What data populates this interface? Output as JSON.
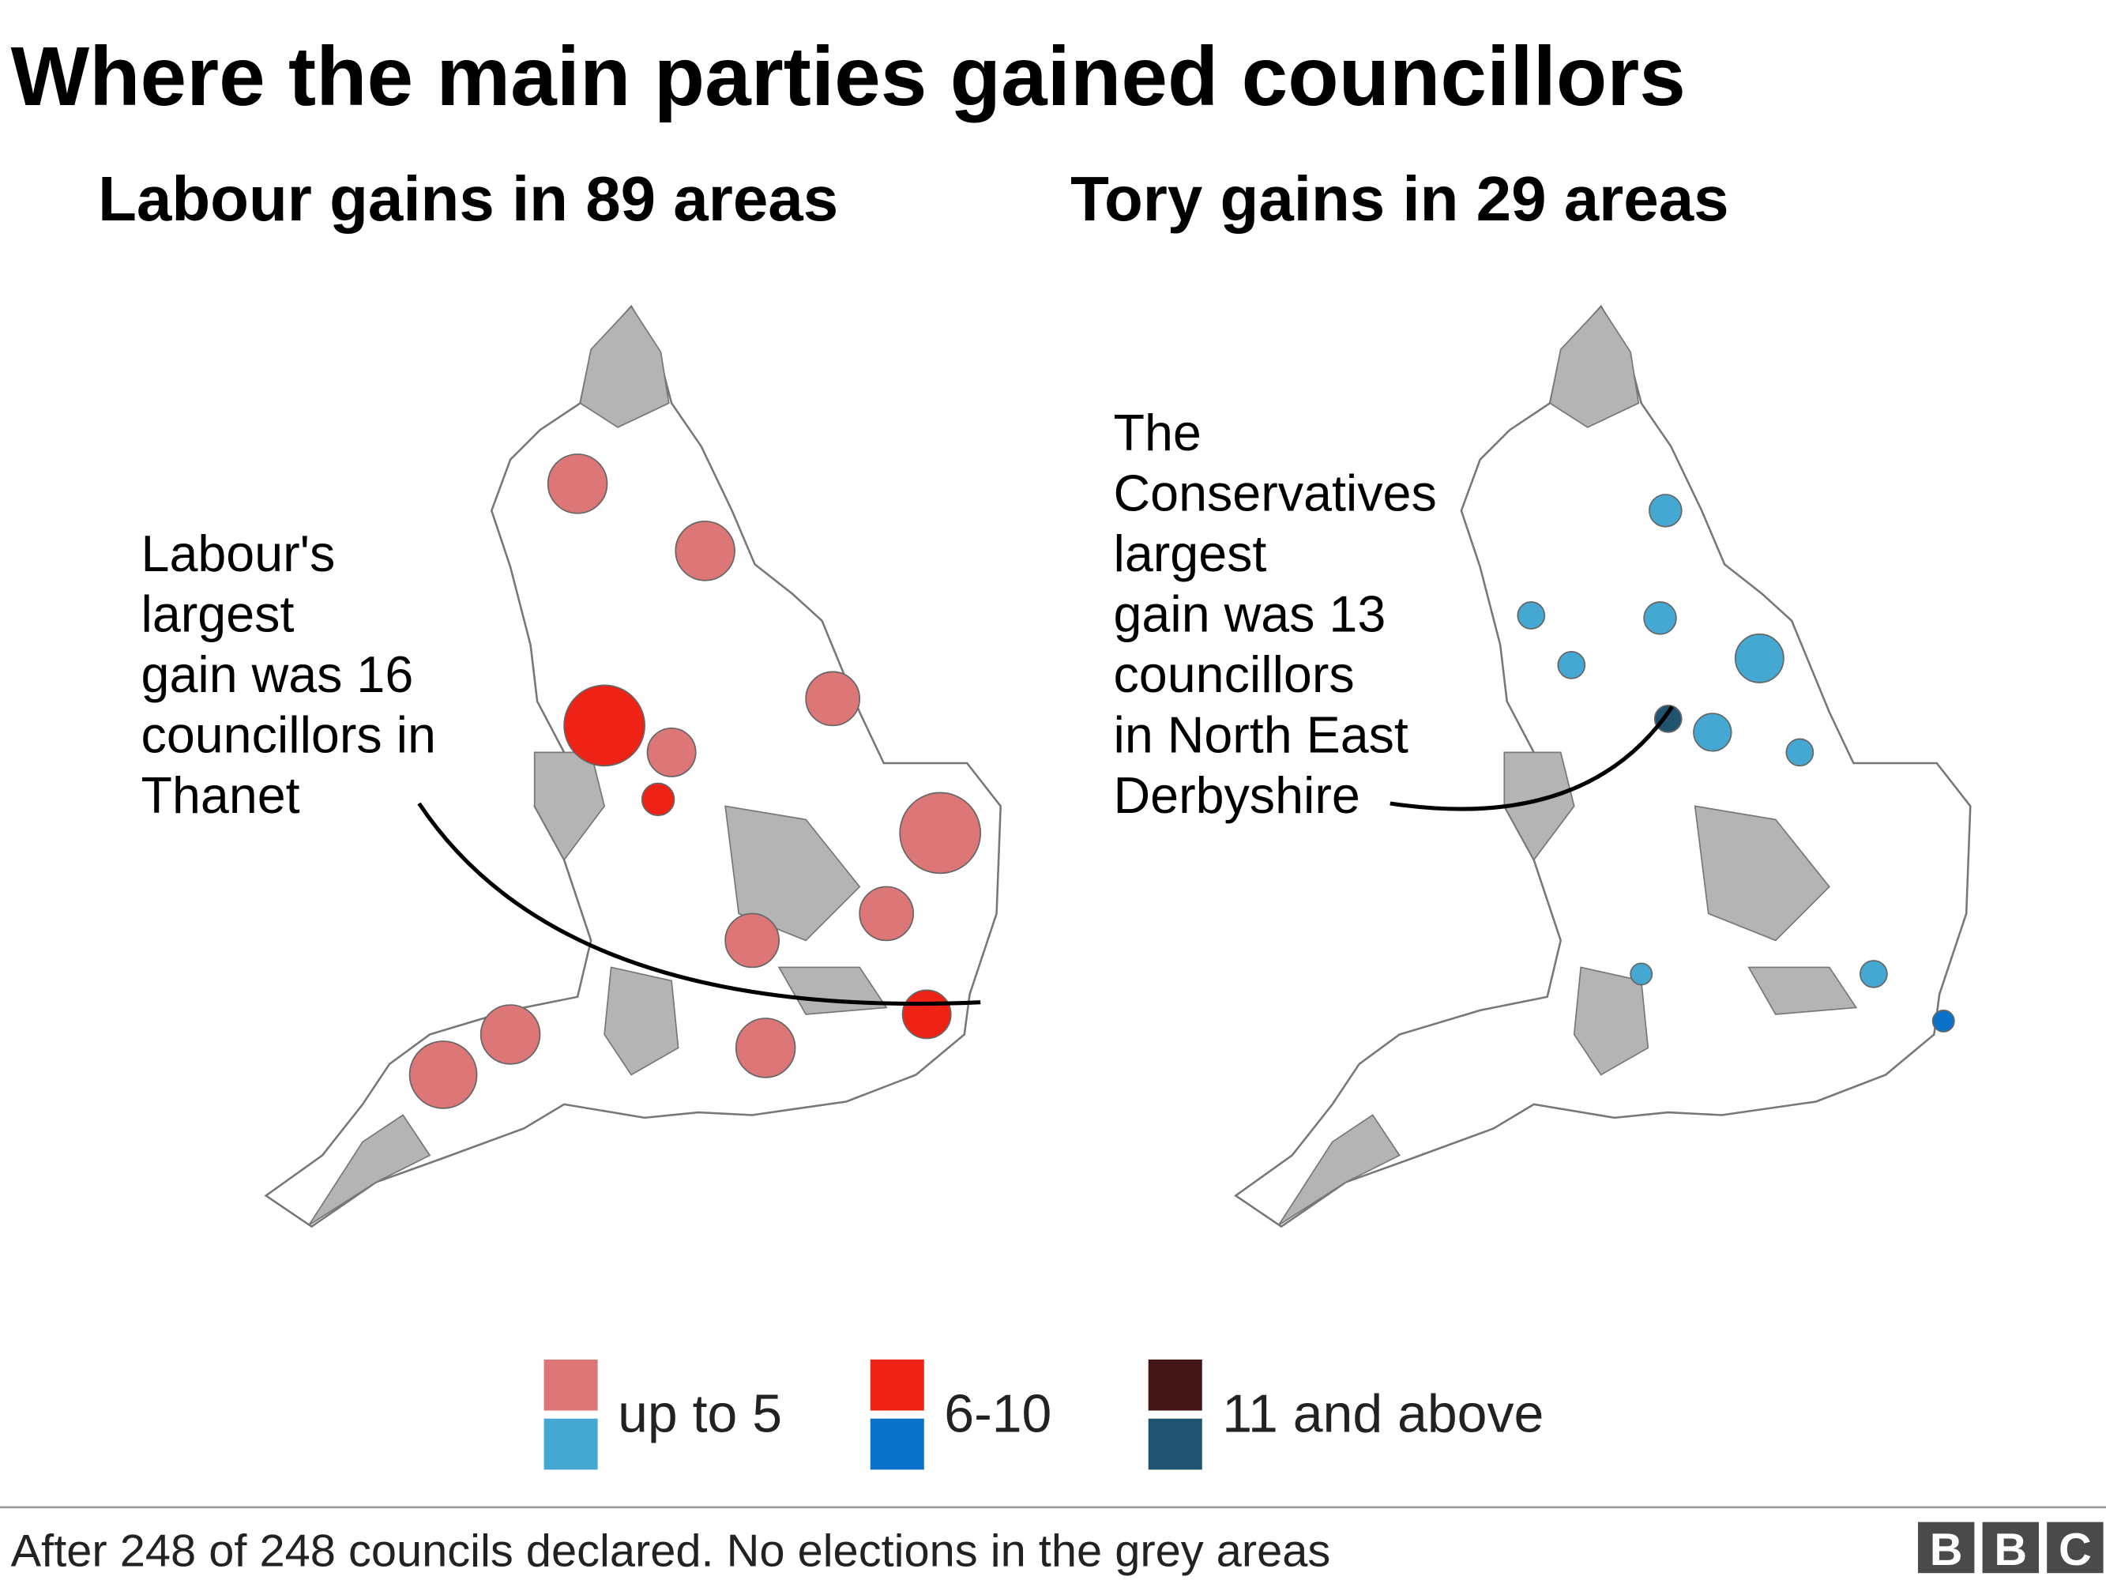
{
  "header": {
    "title": "Where the main parties gained councillors"
  },
  "maps": [
    {
      "subtitle": "Labour gains in 89 areas",
      "annotation": [
        "Labour's",
        "largest",
        "gain was 16",
        "councillors in",
        "Thanet"
      ]
    },
    {
      "subtitle": "Tory gains in 29 areas",
      "annotation": [
        "The",
        "Conservatives",
        "largest",
        "gain was 13",
        "councillors",
        "in North East",
        "Derbyshire"
      ]
    }
  ],
  "legend": [
    {
      "label": "up to 5",
      "labour_color": "#dc7677",
      "tory_color": "#45a8d3"
    },
    {
      "label": "6-10",
      "labour_color": "#ee2315",
      "tory_color": "#0a72c9"
    },
    {
      "label": "11 and above",
      "labour_color": "#431617",
      "tory_color": "#20536f"
    }
  ],
  "footer": {
    "note": "After 248 of 248 councils declared. No elections in the grey areas",
    "logo": [
      "B",
      "B",
      "C"
    ]
  }
}
